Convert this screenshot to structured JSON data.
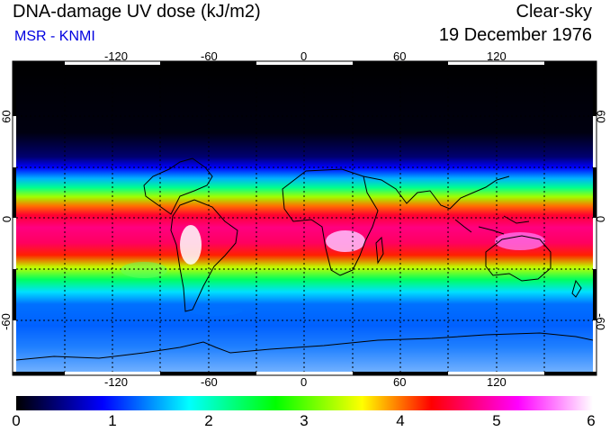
{
  "header": {
    "title": "DNA-damage UV dose (kJ/m2)",
    "source": "MSR - KNMI",
    "condition": "Clear-sky",
    "date": "19 December 1976"
  },
  "map": {
    "projection": "equirectangular",
    "lon_range": [
      -180,
      180
    ],
    "lat_range": [
      -90,
      90
    ],
    "lon_ticks": [
      "-120",
      "-60",
      "0",
      "60",
      "120"
    ],
    "lat_ticks": [
      "60",
      "0",
      "-60"
    ],
    "grid": "dotted every 30 degrees"
  },
  "colorbar": {
    "min": 0,
    "max": 6,
    "tick_labels": [
      "0",
      "1",
      "2",
      "3",
      "4",
      "5",
      "6"
    ],
    "colors": [
      "#000000",
      "#0000ff",
      "#00ffff",
      "#00ff00",
      "#ffff00",
      "#ff0000",
      "#ff00ff",
      "#ffffff"
    ]
  }
}
